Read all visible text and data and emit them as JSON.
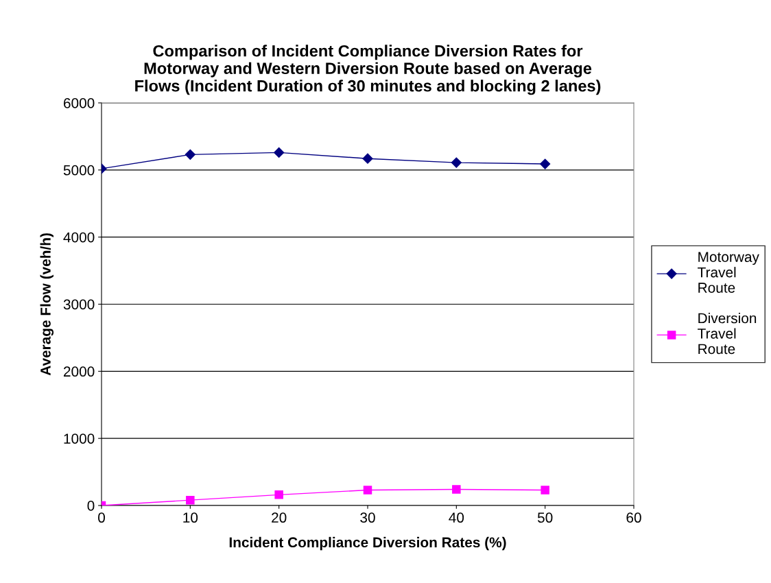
{
  "chart_data": {
    "type": "line",
    "title": "Comparison of Incident Compliance Diversion Rates for\nMotorway and Western Diversion Route based on Average\nFlows (Incident Duration of 30 minutes and blocking 2 lanes)",
    "xlabel": "Incident Compliance Diversion Rates (%)",
    "ylabel": "Average Flow (veh/h)",
    "x": [
      0,
      10,
      20,
      30,
      40,
      50
    ],
    "series": [
      {
        "name": "Motorway\nTravel\nRoute",
        "color": "#000080",
        "marker": "diamond",
        "values": [
          5020,
          5230,
          5260,
          5170,
          5110,
          5090
        ]
      },
      {
        "name": "Diversion\nTravel\nRoute",
        "color": "#ff00ff",
        "marker": "square",
        "values": [
          0,
          80,
          160,
          230,
          240,
          230
        ]
      }
    ],
    "xlim": [
      0,
      60
    ],
    "xticks": [
      0,
      10,
      20,
      30,
      40,
      50,
      60
    ],
    "ylim": [
      0,
      6000
    ],
    "yticks": [
      0,
      1000,
      2000,
      3000,
      4000,
      5000,
      6000
    ],
    "grid": "y",
    "legend": "right"
  }
}
